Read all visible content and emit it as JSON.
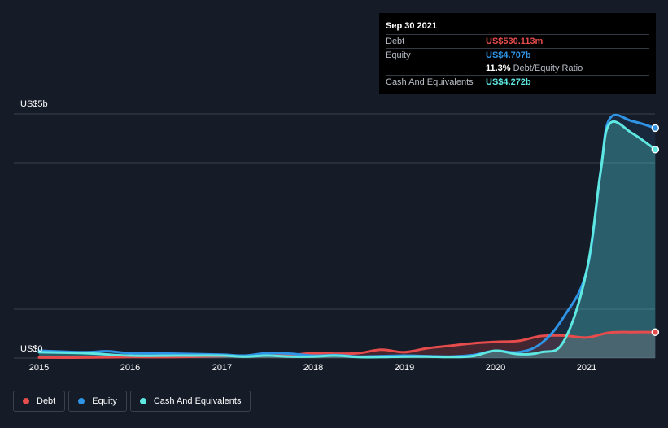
{
  "colors": {
    "debt": "#e64c4c",
    "equity": "#2f94e6",
    "cash": "#5ee8e1",
    "grid": "#3a414d",
    "background": "#151b27"
  },
  "y_axis": {
    "top_label": "US$5b",
    "bottom_label": "US$0"
  },
  "x_axis": {
    "ticks": [
      "2015",
      "2016",
      "2017",
      "2018",
      "2019",
      "2020",
      "2021"
    ]
  },
  "tooltip": {
    "date": "Sep 30 2021",
    "debt_label": "Debt",
    "debt_value": "US$530.113m",
    "equity_label": "Equity",
    "equity_value": "US$4.707b",
    "ratio_value": "11.3%",
    "ratio_label": "Debt/Equity Ratio",
    "cash_label": "Cash And Equivalents",
    "cash_value": "US$4.272b"
  },
  "legend": {
    "debt": "Debt",
    "equity": "Equity",
    "cash": "Cash And Equivalents"
  },
  "chart_data": {
    "type": "area",
    "xlabel": "",
    "ylabel": "",
    "ylim": [
      0,
      5
    ],
    "y_unit": "US$ billions",
    "x_range": [
      2015.0,
      2021.75
    ],
    "grid": true,
    "legend_placement": "bottom-left",
    "series": [
      {
        "name": "Debt",
        "x": [
          2015.0,
          2015.5,
          2016.0,
          2016.5,
          2017.0,
          2017.5,
          2017.75,
          2018.0,
          2018.25,
          2018.5,
          2018.75,
          2019.0,
          2019.25,
          2019.5,
          2019.75,
          2020.0,
          2020.25,
          2020.5,
          2020.75,
          2021.0,
          2021.25,
          2021.5,
          2021.75
        ],
        "values": [
          0.01,
          0.01,
          0.02,
          0.02,
          0.04,
          0.05,
          0.06,
          0.1,
          0.09,
          0.1,
          0.17,
          0.12,
          0.2,
          0.25,
          0.3,
          0.33,
          0.35,
          0.45,
          0.46,
          0.42,
          0.52,
          0.53,
          0.53
        ]
      },
      {
        "name": "Equity",
        "x": [
          2015.0,
          2015.5,
          2015.75,
          2016.0,
          2016.5,
          2017.0,
          2017.25,
          2017.5,
          2017.75,
          2018.0,
          2018.25,
          2018.5,
          2018.75,
          2019.0,
          2019.25,
          2019.5,
          2019.75,
          2020.0,
          2020.25,
          2020.5,
          2020.75,
          2021.0,
          2021.15,
          2021.25,
          2021.5,
          2021.75
        ],
        "values": [
          0.15,
          0.12,
          0.14,
          0.1,
          0.09,
          0.07,
          0.05,
          0.1,
          0.09,
          0.05,
          0.06,
          0.03,
          0.04,
          0.05,
          0.04,
          0.03,
          0.06,
          0.15,
          0.12,
          0.3,
          0.85,
          1.8,
          3.8,
          4.9,
          4.85,
          4.71
        ]
      },
      {
        "name": "Cash And Equivalents",
        "x": [
          2015.0,
          2015.5,
          2016.0,
          2016.5,
          2017.0,
          2017.25,
          2017.5,
          2017.75,
          2018.0,
          2018.25,
          2018.5,
          2018.75,
          2019.0,
          2019.25,
          2019.5,
          2019.75,
          2020.0,
          2020.25,
          2020.5,
          2020.75,
          2021.0,
          2021.15,
          2021.25,
          2021.5,
          2021.75
        ],
        "values": [
          0.12,
          0.1,
          0.05,
          0.05,
          0.05,
          0.03,
          0.05,
          0.03,
          0.03,
          0.05,
          0.02,
          0.02,
          0.03,
          0.03,
          0.02,
          0.04,
          0.15,
          0.08,
          0.12,
          0.35,
          1.8,
          3.8,
          4.8,
          4.6,
          4.27
        ]
      }
    ]
  }
}
